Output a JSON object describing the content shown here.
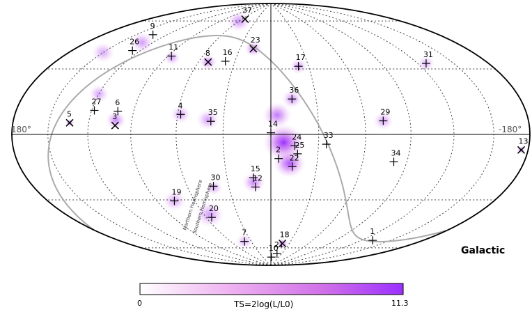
{
  "chart_data": {
    "type": "scatter",
    "projection": "hammer-aitoff",
    "frame_label": "Galactic",
    "lon_label_left": "180°",
    "lon_label_right": "-180°",
    "colorbar": {
      "title": "TS=2log(L/L0)",
      "min_label": "0",
      "max_label": "11.3",
      "min": 0,
      "max": 11.3,
      "colors": [
        "#ffffff",
        "#e8a8ee",
        "#d070e8",
        "#9b30ff"
      ]
    },
    "plane_labels": {
      "north": "Northern Hemisphere",
      "south": "Southern Hemisphere"
    },
    "sources": [
      {
        "id": "1",
        "l": 132,
        "b": -62,
        "marker": "plus"
      },
      {
        "id": "2",
        "l": 5,
        "b": -15,
        "marker": "plus"
      },
      {
        "id": "3",
        "l": -101,
        "b": 5,
        "marker": "x"
      },
      {
        "id": "4",
        "l": -58,
        "b": 12,
        "marker": "plus"
      },
      {
        "id": "5",
        "l": -134,
        "b": 6,
        "marker": "x"
      },
      {
        "id": "6",
        "l": -101,
        "b": 13,
        "marker": "plus"
      },
      {
        "id": "7",
        "l": -40,
        "b": -70,
        "marker": "plus"
      },
      {
        "id": "8",
        "l": -52,
        "b": 45,
        "marker": "x"
      },
      {
        "id": "9",
        "l": -134,
        "b": 57,
        "marker": "plus"
      },
      {
        "id": "10",
        "l": 2,
        "b": -83,
        "marker": "plus"
      },
      {
        "id": "11",
        "l": -87,
        "b": 47,
        "marker": "plus"
      },
      {
        "id": "12",
        "l": -11,
        "b": -33,
        "marker": "plus"
      },
      {
        "id": "13",
        "l": 174,
        "b": -7,
        "marker": "x"
      },
      {
        "id": "14",
        "l": 0,
        "b": 1,
        "marker": "plus"
      },
      {
        "id": "15",
        "l": -12,
        "b": -27,
        "marker": "plus"
      },
      {
        "id": "16",
        "l": -38,
        "b": 46,
        "marker": "plus"
      },
      {
        "id": "17",
        "l": 22,
        "b": 43,
        "marker": "plus"
      },
      {
        "id": "18",
        "l": 19,
        "b": -72,
        "marker": "x"
      },
      {
        "id": "19",
        "l": -76,
        "b": -40,
        "marker": "plus"
      },
      {
        "id": "20",
        "l": -55,
        "b": -52,
        "marker": "plus"
      },
      {
        "id": "21",
        "l": 17,
        "b": -80,
        "marker": "plus"
      },
      {
        "id": "22",
        "l": 14,
        "b": -20,
        "marker": "plus"
      },
      {
        "id": "23",
        "l": -17,
        "b": 55,
        "marker": "x"
      },
      {
        "id": "24",
        "l": 15,
        "b": -7,
        "marker": "plus"
      },
      {
        "id": "25",
        "l": 17,
        "b": -12,
        "marker": "plus"
      },
      {
        "id": "26",
        "l": -127,
        "b": 47,
        "marker": "plus"
      },
      {
        "id": "27",
        "l": -118,
        "b": 13,
        "marker": "plus"
      },
      {
        "id": "29",
        "l": 72,
        "b": 8,
        "marker": "plus"
      },
      {
        "id": "30",
        "l": -41,
        "b": -32,
        "marker": "plus"
      },
      {
        "id": "31",
        "l": 127,
        "b": 39,
        "marker": "plus"
      },
      {
        "id": "33",
        "l": 35,
        "b": -6,
        "marker": "plus"
      },
      {
        "id": "34",
        "l": 81,
        "b": -16,
        "marker": "plus"
      },
      {
        "id": "35",
        "l": -38,
        "b": 8,
        "marker": "plus"
      },
      {
        "id": "36",
        "l": 14,
        "b": 22,
        "marker": "plus"
      },
      {
        "id": "37",
        "l": -54,
        "b": 76,
        "marker": "x"
      }
    ],
    "ts_blobs": [
      {
        "l": 8,
        "b": -5,
        "ts": 11.3,
        "radius": 14
      },
      {
        "l": 12,
        "b": -18,
        "ts": 8.5,
        "radius": 11
      },
      {
        "l": 4,
        "b": 12,
        "ts": 6.0,
        "radius": 10
      },
      {
        "l": -12,
        "b": -30,
        "ts": 5.0,
        "radius": 8
      },
      {
        "l": 14,
        "b": 22,
        "ts": 4.0,
        "radius": 7
      },
      {
        "l": 22,
        "b": 43,
        "ts": 3.5,
        "radius": 6
      },
      {
        "l": 72,
        "b": 8,
        "ts": 3.0,
        "radius": 7
      },
      {
        "l": -40,
        "b": 9,
        "ts": 3.5,
        "radius": 8
      },
      {
        "l": -58,
        "b": 12,
        "ts": 3.0,
        "radius": 7
      },
      {
        "l": -101,
        "b": 8,
        "ts": 5.0,
        "radius": 7
      },
      {
        "l": -134,
        "b": 6,
        "ts": 5.5,
        "radius": 3
      },
      {
        "l": 174,
        "b": -7,
        "ts": 5.5,
        "radius": 3
      },
      {
        "l": -17,
        "b": 55,
        "ts": 5.0,
        "radius": 6
      },
      {
        "l": -52,
        "b": 45,
        "ts": 4.5,
        "radius": 6
      },
      {
        "l": -60,
        "b": 74,
        "ts": 4.0,
        "radius": 8
      },
      {
        "l": -130,
        "b": 52,
        "ts": 3.5,
        "radius": 8
      },
      {
        "l": -150,
        "b": 43,
        "ts": 2.5,
        "radius": 8
      },
      {
        "l": 127,
        "b": 39,
        "ts": 2.0,
        "radius": 6
      },
      {
        "l": 19,
        "b": -72,
        "ts": 5.5,
        "radius": 4
      },
      {
        "l": -55,
        "b": -50,
        "ts": 3.5,
        "radius": 10
      },
      {
        "l": -41,
        "b": -33,
        "ts": 2.5,
        "radius": 6
      },
      {
        "l": -76,
        "b": -40,
        "ts": 2.5,
        "radius": 8
      },
      {
        "l": -120,
        "b": 22,
        "ts": 3.0,
        "radius": 7
      },
      {
        "l": -85,
        "b": 46,
        "ts": 2.5,
        "radius": 6
      },
      {
        "l": -40,
        "b": -70,
        "ts": 2.0,
        "radius": 6
      }
    ]
  }
}
